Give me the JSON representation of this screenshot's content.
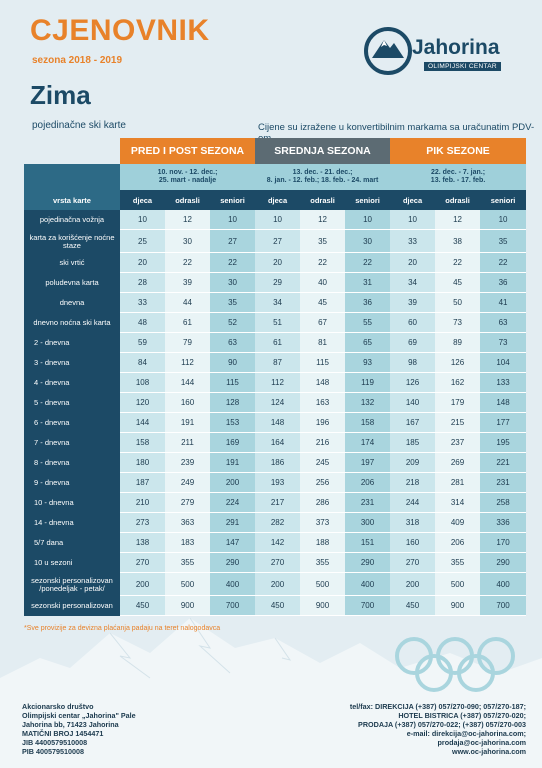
{
  "header": {
    "title": "CJENOVNIK",
    "season": "sezona 2018 - 2019",
    "section": "Zima",
    "subtitle": "pojedinačne ski karte",
    "note": "Cijene su izražene u konvertibilnim markama sa uračunatim PDV-om"
  },
  "logo": {
    "name": "Jahorina",
    "tagline": "OLIMPIJSKI CENTAR"
  },
  "table": {
    "seasons": [
      {
        "name": "PRED I POST SEZONA",
        "dates": [
          "10. nov. - 12. dec.;",
          "25. mart - nadalje"
        ]
      },
      {
        "name": "SREDNJA SEZONA",
        "dates": [
          "13. dec. - 21. dec.;",
          "8. jan. - 12. feb.; 18. feb. - 24. mart"
        ]
      },
      {
        "name": "PIK SEZONE",
        "dates": [
          "22. dec. - 7. jan.;",
          "13. feb. - 17. feb."
        ]
      }
    ],
    "row_header": "vrsta karte",
    "categories": [
      "djeca",
      "odrasli",
      "seniori"
    ],
    "rows": [
      {
        "label": "pojedinačna vožnja",
        "values": [
          "10",
          "12",
          "10",
          "10",
          "12",
          "10",
          "10",
          "12",
          "10"
        ]
      },
      {
        "label": "karta za korišćenje noćne staze",
        "values": [
          "25",
          "30",
          "27",
          "27",
          "35",
          "30",
          "33",
          "38",
          "35"
        ]
      },
      {
        "label": "ski vrtić",
        "values": [
          "20",
          "22",
          "22",
          "20",
          "22",
          "22",
          "20",
          "22",
          "22"
        ]
      },
      {
        "label": "poludevna karta",
        "values": [
          "28",
          "39",
          "30",
          "29",
          "40",
          "31",
          "34",
          "45",
          "36"
        ]
      },
      {
        "label": "dnevna",
        "values": [
          "33",
          "44",
          "35",
          "34",
          "45",
          "36",
          "39",
          "50",
          "41"
        ]
      },
      {
        "label": "dnevno noćna ski karta",
        "values": [
          "48",
          "61",
          "52",
          "51",
          "67",
          "55",
          "60",
          "73",
          "63"
        ]
      },
      {
        "label": "2 - dnevna",
        "values": [
          "59",
          "79",
          "63",
          "61",
          "81",
          "65",
          "69",
          "89",
          "73"
        ]
      },
      {
        "label": "3 - dnevna",
        "values": [
          "84",
          "112",
          "90",
          "87",
          "115",
          "93",
          "98",
          "126",
          "104"
        ]
      },
      {
        "label": "4 - dnevna",
        "values": [
          "108",
          "144",
          "115",
          "112",
          "148",
          "119",
          "126",
          "162",
          "133"
        ]
      },
      {
        "label": "5 - dnevna",
        "values": [
          "120",
          "160",
          "128",
          "124",
          "163",
          "132",
          "140",
          "179",
          "148"
        ]
      },
      {
        "label": "6 - dnevna",
        "values": [
          "144",
          "191",
          "153",
          "148",
          "196",
          "158",
          "167",
          "215",
          "177"
        ]
      },
      {
        "label": "7 - dnevna",
        "values": [
          "158",
          "211",
          "169",
          "164",
          "216",
          "174",
          "185",
          "237",
          "195"
        ]
      },
      {
        "label": "8 - dnevna",
        "values": [
          "180",
          "239",
          "191",
          "186",
          "245",
          "197",
          "209",
          "269",
          "221"
        ]
      },
      {
        "label": "9 - dnevna",
        "values": [
          "187",
          "249",
          "200",
          "193",
          "256",
          "206",
          "218",
          "281",
          "231"
        ]
      },
      {
        "label": "10 - dnevna",
        "values": [
          "210",
          "279",
          "224",
          "217",
          "286",
          "231",
          "244",
          "314",
          "258"
        ]
      },
      {
        "label": "14 - dnevna",
        "values": [
          "273",
          "363",
          "291",
          "282",
          "373",
          "300",
          "318",
          "409",
          "336"
        ]
      },
      {
        "label": "5/7 dana",
        "values": [
          "138",
          "183",
          "147",
          "142",
          "188",
          "151",
          "160",
          "206",
          "170"
        ]
      },
      {
        "label": "10  u sezoni",
        "values": [
          "270",
          "355",
          "290",
          "270",
          "355",
          "290",
          "270",
          "355",
          "290"
        ]
      },
      {
        "label": "sezonski personalizovan /ponedeljak - petak/",
        "values": [
          "200",
          "500",
          "400",
          "200",
          "500",
          "400",
          "200",
          "500",
          "400"
        ]
      },
      {
        "label": "sezonski personalizovan",
        "values": [
          "450",
          "900",
          "700",
          "450",
          "900",
          "700",
          "450",
          "900",
          "700"
        ]
      }
    ]
  },
  "footnote": "*Sve provizije za devizna plaćanja padaju na teret nalogodavca",
  "footer_left": [
    "Akcionarsko društvo",
    "Olimpijski centar „Jahorina\" Pale",
    "Jahorina bb, 71423 Jahorina",
    "MATIČNI BROJ 1454471",
    "JIB 4400579510008",
    "PIB 400579510008"
  ],
  "footer_right": [
    "tel/fax: DIREKCIJA (+387) 057/270-090; 057/270-187;",
    "HOTEL BISTRICA (+387) 057/270-020;",
    "PRODAJA (+387) 057/270-022; (+387) 057/270-003",
    "e-mail: direkcija@oc-jahorina.com;",
    "prodaja@oc-jahorina.com",
    "www.oc-jahorina.com"
  ],
  "colors": {
    "accent": "#e8822a",
    "navy": "#1c4a66",
    "cell_teal": "#a9d5de",
    "background": "#e3edf2"
  }
}
